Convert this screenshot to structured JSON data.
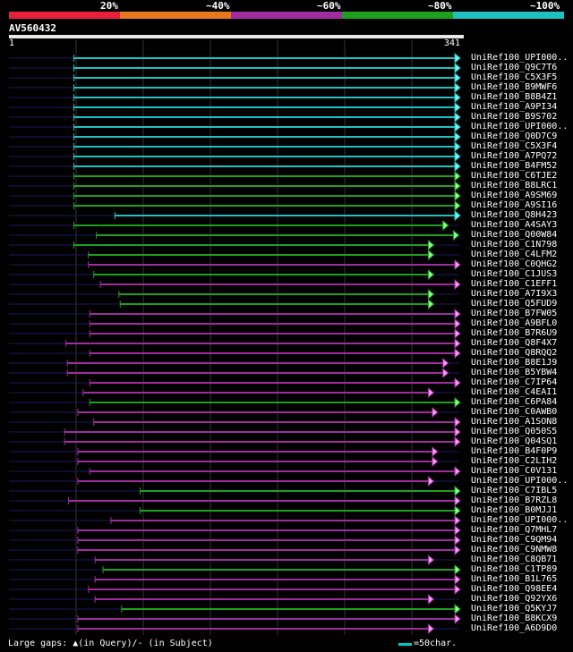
{
  "legend": {
    "labels": [
      "20%",
      "~40%",
      "~60%",
      "~80%",
      "~100%"
    ],
    "colors": [
      "#e8203c",
      "#e8781e",
      "#a02ca0",
      "#1ea01e",
      "#1ec0c0"
    ]
  },
  "query": {
    "name": "AV560432",
    "start": "1",
    "end": "341",
    "length": 341
  },
  "footer": {
    "gaps_text": "Large gaps: ▲(in Query)/- (in Subject)",
    "scale_text": "=50char."
  },
  "hits": [
    {
      "name": "UniRef100_UPI000..",
      "start": 50,
      "end": 341,
      "color": "cyan",
      "arrow": "right"
    },
    {
      "name": "UniRef100_Q9C7T6",
      "start": 50,
      "end": 341,
      "color": "cyan",
      "arrow": "right"
    },
    {
      "name": "UniRef100_C5X3F5",
      "start": 50,
      "end": 341,
      "color": "cyan",
      "arrow": "right"
    },
    {
      "name": "UniRef100_B9MWF6",
      "start": 50,
      "end": 341,
      "color": "cyan",
      "arrow": "right"
    },
    {
      "name": "UniRef100_B8B4Z1",
      "start": 50,
      "end": 341,
      "color": "cyan",
      "arrow": "right"
    },
    {
      "name": "UniRef100_A9PI34",
      "start": 50,
      "end": 341,
      "color": "cyan",
      "arrow": "right"
    },
    {
      "name": "UniRef100_B9S702",
      "start": 50,
      "end": 341,
      "color": "cyan",
      "arrow": "right"
    },
    {
      "name": "UniRef100_UPI000..",
      "start": 50,
      "end": 341,
      "color": "cyan",
      "arrow": "right"
    },
    {
      "name": "UniRef100_Q0D7C9",
      "start": 50,
      "end": 341,
      "color": "cyan",
      "arrow": "right"
    },
    {
      "name": "UniRef100_C5X3F4",
      "start": 50,
      "end": 341,
      "color": "cyan",
      "arrow": "right"
    },
    {
      "name": "UniRef100_A7PQ72",
      "start": 50,
      "end": 341,
      "color": "cyan",
      "arrow": "right"
    },
    {
      "name": "UniRef100_B4FM52",
      "start": 50,
      "end": 341,
      "color": "cyan",
      "arrow": "right"
    },
    {
      "name": "UniRef100_C6TJE2",
      "start": 50,
      "end": 341,
      "color": "green",
      "arrow": "right"
    },
    {
      "name": "UniRef100_B8LRC1",
      "start": 50,
      "end": 341,
      "color": "green",
      "arrow": "right"
    },
    {
      "name": "UniRef100_A9SM69",
      "start": 50,
      "end": 341,
      "color": "green",
      "arrow": "right"
    },
    {
      "name": "UniRef100_A9SI16",
      "start": 50,
      "end": 341,
      "color": "green",
      "arrow": "right"
    },
    {
      "name": "UniRef100_Q8H423",
      "start": 81,
      "end": 341,
      "color": "cyan",
      "arrow": "right"
    },
    {
      "name": "UniRef100_A4SAY3",
      "start": 50,
      "end": 332,
      "color": "green",
      "arrow": "right"
    },
    {
      "name": "UniRef100_Q00W84",
      "start": 67,
      "end": 340,
      "color": "green",
      "arrow": "right"
    },
    {
      "name": "UniRef100_C1N798",
      "start": 50,
      "end": 321,
      "color": "green",
      "arrow": "right"
    },
    {
      "name": "UniRef100_C4LFM2",
      "start": 61,
      "end": 321,
      "color": "green",
      "arrow": "right"
    },
    {
      "name": "UniRef100_C0QHG2",
      "start": 61,
      "end": 341,
      "color": "magenta",
      "arrow": "right"
    },
    {
      "name": "UniRef100_C1JUS3",
      "start": 65,
      "end": 321,
      "color": "green",
      "arrow": "right"
    },
    {
      "name": "UniRef100_C1EFF1",
      "start": 70,
      "end": 341,
      "color": "magenta",
      "arrow": "right"
    },
    {
      "name": "UniRef100_A7I9X3",
      "start": 84,
      "end": 321,
      "color": "green",
      "arrow": "right"
    },
    {
      "name": "UniRef100_Q5FUD9",
      "start": 85,
      "end": 321,
      "color": "green",
      "arrow": "right"
    },
    {
      "name": "UniRef100_B7FW05",
      "start": 62,
      "end": 341,
      "color": "magenta",
      "arrow": "right"
    },
    {
      "name": "UniRef100_A9BFL0",
      "start": 62,
      "end": 341,
      "color": "magenta",
      "arrow": "right"
    },
    {
      "name": "UniRef100_B7R6U9",
      "start": 62,
      "end": 341,
      "color": "magenta",
      "arrow": "right"
    },
    {
      "name": "UniRef100_Q8F4X7",
      "start": 44,
      "end": 341,
      "color": "magenta",
      "arrow": "right"
    },
    {
      "name": "UniRef100_Q8RQQ2",
      "start": 62,
      "end": 341,
      "color": "magenta",
      "arrow": "right"
    },
    {
      "name": "UniRef100_B8E1J9",
      "start": 45,
      "end": 332,
      "color": "magenta",
      "arrow": "right"
    },
    {
      "name": "UniRef100_B5YBW4",
      "start": 45,
      "end": 332,
      "color": "magenta",
      "arrow": "right"
    },
    {
      "name": "UniRef100_C7IP64",
      "start": 62,
      "end": 341,
      "color": "magenta",
      "arrow": "right"
    },
    {
      "name": "UniRef100_C4EAI1",
      "start": 57,
      "end": 321,
      "color": "magenta",
      "arrow": "right"
    },
    {
      "name": "UniRef100_C6PA84",
      "start": 62,
      "end": 341,
      "color": "green",
      "arrow": "right"
    },
    {
      "name": "UniRef100_C0AWB0",
      "start": 53,
      "end": 324,
      "color": "magenta",
      "arrow": "right"
    },
    {
      "name": "UniRef100_A1SON8",
      "start": 65,
      "end": 341,
      "color": "magenta",
      "arrow": "right"
    },
    {
      "name": "UniRef100_Q050S5",
      "start": 43,
      "end": 341,
      "color": "magenta",
      "arrow": "right"
    },
    {
      "name": "UniRef100_Q04SQ1",
      "start": 43,
      "end": 341,
      "color": "magenta",
      "arrow": "right"
    },
    {
      "name": "UniRef100_B4F0P9",
      "start": 53,
      "end": 324,
      "color": "magenta",
      "arrow": "right"
    },
    {
      "name": "UniRef100_C2LIH2",
      "start": 53,
      "end": 324,
      "color": "magenta",
      "arrow": "right"
    },
    {
      "name": "UniRef100_C0V131",
      "start": 62,
      "end": 341,
      "color": "magenta",
      "arrow": "right"
    },
    {
      "name": "UniRef100_UPI000..",
      "start": 53,
      "end": 321,
      "color": "magenta",
      "arrow": "right"
    },
    {
      "name": "UniRef100_C7IBL5",
      "start": 100,
      "end": 341,
      "color": "green",
      "arrow": "right"
    },
    {
      "name": "UniRef100_B7RZL8",
      "start": 46,
      "end": 341,
      "color": "magenta",
      "arrow": "right"
    },
    {
      "name": "UniRef100_B0MJJ1",
      "start": 100,
      "end": 341,
      "color": "green",
      "arrow": "right"
    },
    {
      "name": "UniRef100_UPI000..",
      "start": 78,
      "end": 341,
      "color": "magenta",
      "arrow": "right"
    },
    {
      "name": "UniRef100_Q7MHL7",
      "start": 53,
      "end": 341,
      "color": "magenta",
      "arrow": "right"
    },
    {
      "name": "UniRef100_C9QM94",
      "start": 53,
      "end": 341,
      "color": "magenta",
      "arrow": "right"
    },
    {
      "name": "UniRef100_C9NMW8",
      "start": 53,
      "end": 341,
      "color": "magenta",
      "arrow": "right"
    },
    {
      "name": "UniRef100_C8QB71",
      "start": 66,
      "end": 321,
      "color": "magenta",
      "arrow": "right"
    },
    {
      "name": "UniRef100_C1TP89",
      "start": 72,
      "end": 341,
      "color": "green",
      "arrow": "right"
    },
    {
      "name": "UniRef100_B1L765",
      "start": 66,
      "end": 341,
      "color": "magenta",
      "arrow": "right"
    },
    {
      "name": "UniRef100_Q98EE4",
      "start": 61,
      "end": 341,
      "color": "magenta",
      "arrow": "right"
    },
    {
      "name": "UniRef100_Q92YX6",
      "start": 66,
      "end": 321,
      "color": "magenta",
      "arrow": "right"
    },
    {
      "name": "UniRef100_Q5KYJ7",
      "start": 86,
      "end": 341,
      "color": "green",
      "arrow": "right"
    },
    {
      "name": "UniRef100_B8KCX9",
      "start": 53,
      "end": 341,
      "color": "magenta",
      "arrow": "right"
    },
    {
      "name": "UniRef100_A6D9D0",
      "start": 53,
      "end": 321,
      "color": "magenta",
      "arrow": "right"
    }
  ]
}
